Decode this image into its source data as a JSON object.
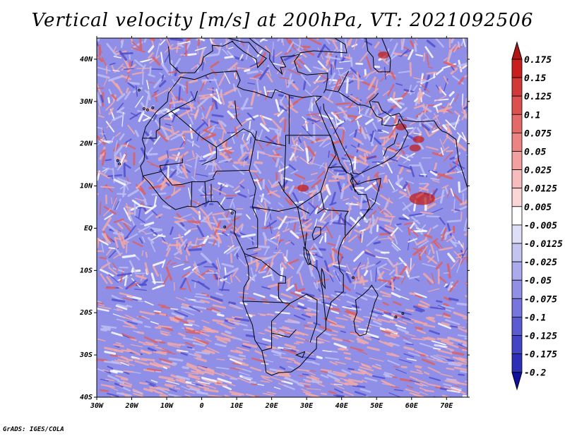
{
  "title": "Vertical velocity [m/s] at 200hPa, VT: 2021092506",
  "footer": "GrADS: IGES/COLA",
  "map": {
    "projection": "latlon",
    "lon_range": [
      -30,
      76
    ],
    "lat_range": [
      -40,
      45
    ],
    "lon_ticks": [
      {
        "value": -30,
        "label": "30W"
      },
      {
        "value": -20,
        "label": "20W"
      },
      {
        "value": -10,
        "label": "10W"
      },
      {
        "value": 0,
        "label": "0"
      },
      {
        "value": 10,
        "label": "10E"
      },
      {
        "value": 20,
        "label": "20E"
      },
      {
        "value": 30,
        "label": "30E"
      },
      {
        "value": 40,
        "label": "40E"
      },
      {
        "value": 50,
        "label": "50E"
      },
      {
        "value": 60,
        "label": "60E"
      },
      {
        "value": 70,
        "label": "70E"
      }
    ],
    "lat_ticks": [
      {
        "value": 40,
        "label": "40N"
      },
      {
        "value": 30,
        "label": "30N"
      },
      {
        "value": 20,
        "label": "20N"
      },
      {
        "value": 10,
        "label": "10N"
      },
      {
        "value": 0,
        "label": "EQ"
      },
      {
        "value": -10,
        "label": "10S"
      },
      {
        "value": -20,
        "label": "20S"
      },
      {
        "value": -30,
        "label": "30S"
      },
      {
        "value": -40,
        "label": "40S"
      }
    ]
  },
  "colorbar": {
    "levels": [
      {
        "label": "0.175",
        "color": "#c81e1e"
      },
      {
        "label": "0.15",
        "color": "#d23a3a"
      },
      {
        "label": "0.125",
        "color": "#dc5050"
      },
      {
        "label": "0.1",
        "color": "#e46a6a"
      },
      {
        "label": "0.075",
        "color": "#ec8484"
      },
      {
        "label": "0.05",
        "color": "#f2a0a0"
      },
      {
        "label": "0.025",
        "color": "#f7bcbc"
      },
      {
        "label": "0.0125",
        "color": "#fbd6d6"
      },
      {
        "label": "0.005",
        "color": "#ffffff"
      },
      {
        "label": "-0.005",
        "color": "#dedef8"
      },
      {
        "label": "-0.0125",
        "color": "#c4c4f2"
      },
      {
        "label": "-0.025",
        "color": "#aaaaec"
      },
      {
        "label": "-0.05",
        "color": "#9090e4"
      },
      {
        "label": "-0.075",
        "color": "#7676dc"
      },
      {
        "label": "-0.1",
        "color": "#5c5cd2"
      },
      {
        "label": "-0.125",
        "color": "#4444c6"
      },
      {
        "label": "-0.175",
        "color": "#2e2eb8"
      },
      {
        "label": "-0.2",
        "color": "#1c1ca8"
      }
    ],
    "top_arrow_color": "#b41414",
    "bottom_arrow_color": "#1010a0"
  },
  "palette": {
    "background_blue": "#8f8fe8",
    "light_blue": "#bfc0f3",
    "light_red": "#f3a9a9",
    "red": "#e06060",
    "dark_red": "#c02020",
    "dark_blue": "#5050d0"
  }
}
